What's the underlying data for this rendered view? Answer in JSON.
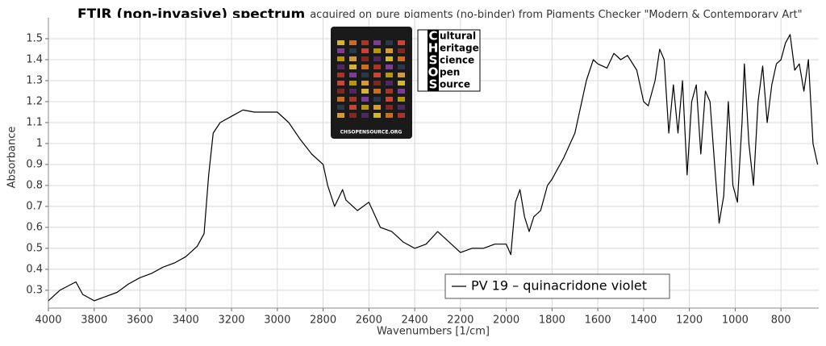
{
  "chart_data": {
    "type": "line",
    "title_main": "FTIR (non-invasive) spectrum",
    "title_parts": [
      "acquired on",
      "pure",
      "pigments (no-binder) from Pigments Checker \"Modern & Contemporary Art\""
    ],
    "xlabel": "Wavenumbers [1/cm]",
    "ylabel": "Absorbance",
    "xlim": [
      4000,
      635
    ],
    "ylim": [
      0.215,
      1.6
    ],
    "xticks": [
      4000,
      3800,
      3600,
      3400,
      3200,
      3000,
      2800,
      2600,
      2400,
      2200,
      2000,
      1800,
      1600,
      1400,
      1200,
      1000,
      800
    ],
    "yticks": [
      0.3,
      0.4,
      0.5,
      0.6,
      0.7,
      0.8,
      0.9,
      1,
      1.1,
      1.2,
      1.3,
      1.4,
      1.5
    ],
    "grid": true,
    "legend": "bottom",
    "x": [
      4000,
      3950,
      3880,
      3850,
      3800,
      3750,
      3700,
      3650,
      3600,
      3550,
      3500,
      3450,
      3400,
      3350,
      3320,
      3300,
      3280,
      3250,
      3200,
      3150,
      3100,
      3050,
      3000,
      2950,
      2900,
      2850,
      2800,
      2780,
      2750,
      2715,
      2700,
      2650,
      2600,
      2550,
      2500,
      2450,
      2400,
      2350,
      2300,
      2250,
      2200,
      2150,
      2100,
      2050,
      2000,
      1980,
      1960,
      1940,
      1920,
      1900,
      1880,
      1850,
      1820,
      1800,
      1780,
      1750,
      1700,
      1680,
      1650,
      1620,
      1600,
      1560,
      1530,
      1500,
      1470,
      1430,
      1400,
      1380,
      1350,
      1330,
      1310,
      1290,
      1270,
      1250,
      1230,
      1210,
      1190,
      1170,
      1150,
      1130,
      1110,
      1090,
      1070,
      1050,
      1030,
      1010,
      990,
      970,
      960,
      940,
      920,
      900,
      880,
      860,
      840,
      820,
      800,
      780,
      760,
      740,
      720,
      700,
      680,
      660,
      640
    ],
    "series": [
      {
        "name": "PV 19 – quinacridone violet",
        "color": "#000000",
        "values": [
          0.25,
          0.3,
          0.34,
          0.28,
          0.25,
          0.27,
          0.29,
          0.33,
          0.36,
          0.38,
          0.41,
          0.43,
          0.46,
          0.51,
          0.57,
          0.85,
          1.05,
          1.1,
          1.13,
          1.16,
          1.15,
          1.15,
          1.15,
          1.1,
          1.02,
          0.95,
          0.9,
          0.8,
          0.7,
          0.78,
          0.73,
          0.68,
          0.72,
          0.6,
          0.58,
          0.53,
          0.5,
          0.52,
          0.58,
          0.53,
          0.48,
          0.5,
          0.5,
          0.52,
          0.52,
          0.47,
          0.72,
          0.78,
          0.65,
          0.58,
          0.65,
          0.68,
          0.8,
          0.83,
          0.87,
          0.93,
          1.05,
          1.15,
          1.3,
          1.4,
          1.38,
          1.36,
          1.43,
          1.4,
          1.42,
          1.35,
          1.2,
          1.18,
          1.3,
          1.45,
          1.4,
          1.05,
          1.28,
          1.05,
          1.3,
          0.85,
          1.2,
          1.28,
          0.95,
          1.25,
          1.2,
          0.9,
          0.62,
          0.75,
          1.2,
          0.8,
          0.72,
          1.1,
          1.38,
          1.0,
          0.8,
          1.2,
          1.37,
          1.1,
          1.28,
          1.38,
          1.4,
          1.48,
          1.52,
          1.35,
          1.38,
          1.25,
          1.4,
          1.0,
          0.9
        ]
      }
    ]
  },
  "logo": {
    "letters": [
      "C",
      "H",
      "S",
      "O",
      "S"
    ],
    "words": [
      "ultural",
      "eritage",
      "cience",
      "pen",
      "ource"
    ],
    "site": "CHSOPENSOURCE.ORG"
  }
}
